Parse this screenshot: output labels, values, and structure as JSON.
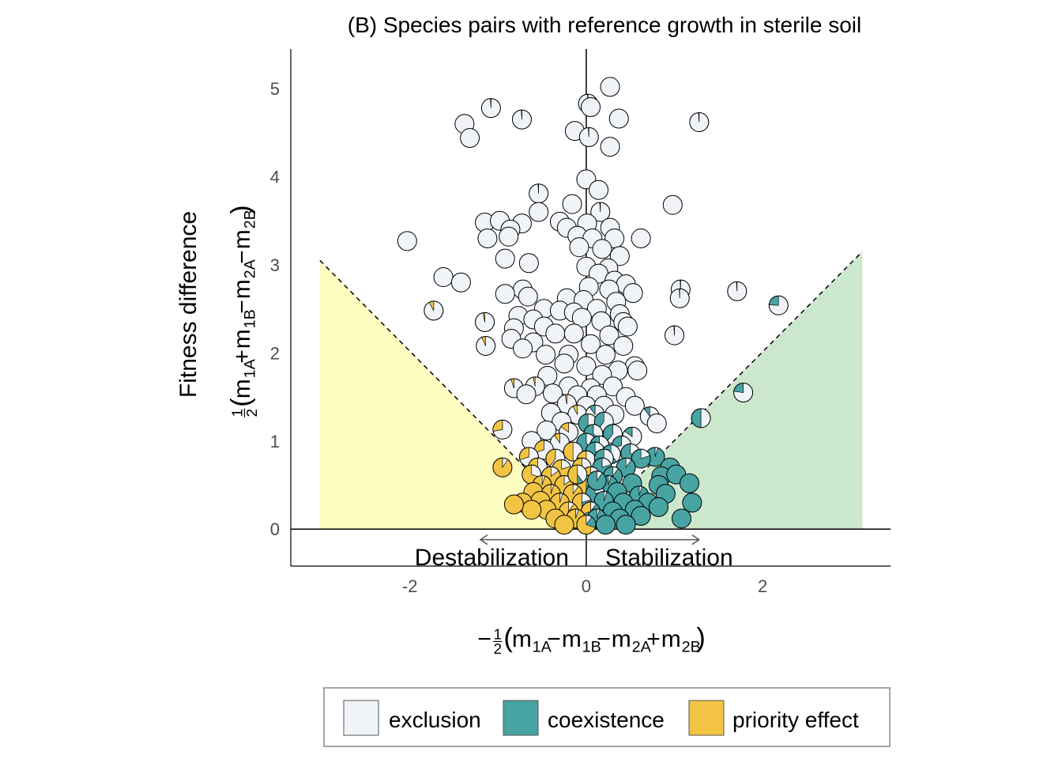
{
  "chart_data": {
    "type": "scatter",
    "title": "(B) Species pairs with reference growth in sterile soil",
    "ylabel_main": "Fitness difference",
    "ylabel_formula": {
      "frac_num": "1",
      "frac_den": "2",
      "open": "(",
      "terms": [
        {
          "base": "m",
          "sub": "1A",
          "op": ""
        },
        {
          "base": "m",
          "sub": "1B",
          "op": "+"
        },
        {
          "base": "m",
          "sub": "2A",
          "op": "−"
        },
        {
          "base": "m",
          "sub": "2B",
          "op": "−"
        }
      ],
      "close": ")"
    },
    "xlabel_formula": {
      "sign": "−",
      "frac_num": "1",
      "frac_den": "2",
      "open": "(",
      "terms": [
        {
          "base": "m",
          "sub": "1A",
          "op": ""
        },
        {
          "base": "m",
          "sub": "1B",
          "op": "−"
        },
        {
          "base": "m",
          "sub": "2A",
          "op": "−"
        },
        {
          "base": "m",
          "sub": "2B",
          "op": "+"
        }
      ],
      "close": ")"
    },
    "xlim": [
      -3.35,
      3.45
    ],
    "ylim": [
      -0.42,
      5.45
    ],
    "xticks": [
      {
        "v": -2,
        "label": "-2"
      },
      {
        "v": 0,
        "label": "0"
      },
      {
        "v": 2,
        "label": "2"
      }
    ],
    "yticks": [
      {
        "v": 0,
        "label": "0"
      },
      {
        "v": 1,
        "label": "1"
      },
      {
        "v": 2,
        "label": "2"
      },
      {
        "v": 3,
        "label": "3"
      },
      {
        "v": 4,
        "label": "4"
      },
      {
        "v": 5,
        "label": "5"
      }
    ],
    "grid": false,
    "regions": [
      {
        "name": "priority-region",
        "color": "#fdfdbf",
        "polygon": [
          [
            -3.02,
            0
          ],
          [
            -3.02,
            3.05
          ],
          [
            0,
            0
          ]
        ]
      },
      {
        "name": "coexistence-region",
        "color": "#cce8cc",
        "polygon": [
          [
            0,
            0
          ],
          [
            3.13,
            3.15
          ],
          [
            3.13,
            0
          ]
        ]
      }
    ],
    "boundary_lines": [
      {
        "from": [
          -3.02,
          3.05
        ],
        "to": [
          0,
          0
        ]
      },
      {
        "from": [
          0,
          0
        ],
        "to": [
          3.13,
          3.15
        ]
      }
    ],
    "annotations": {
      "left": "Destabilization",
      "right": "Stabilization",
      "arrow_from": -1.2,
      "arrow_to": 1.28,
      "arrow_y": -0.12
    },
    "legend": {
      "placement": "bottom",
      "items": [
        {
          "label": "exclusion",
          "color": "#f0f4f9"
        },
        {
          "label": "coexistence",
          "color": "#48a3a3"
        },
        {
          "label": "priority effect",
          "color": "#f2c444"
        }
      ]
    },
    "pie_colors": {
      "exclusion": "#f0f4f9",
      "coexistence": "#48a3a3",
      "priority": "#f2c444"
    },
    "points": [
      [
        0.27,
        5.02,
        1,
        0,
        0
      ],
      [
        0.02,
        4.83,
        0.99,
        0.01,
        0
      ],
      [
        0.05,
        4.79,
        1,
        0,
        0
      ],
      [
        -1.08,
        4.78,
        0.99,
        0.01,
        0
      ],
      [
        -1.38,
        4.6,
        1,
        0,
        0
      ],
      [
        -0.73,
        4.65,
        0.99,
        0.01,
        0
      ],
      [
        0.37,
        4.66,
        1,
        0,
        0
      ],
      [
        1.28,
        4.62,
        0.99,
        0.01,
        0
      ],
      [
        -1.32,
        4.44,
        1,
        0,
        0
      ],
      [
        -0.13,
        4.52,
        1,
        0,
        0
      ],
      [
        0.03,
        4.45,
        0.99,
        0.01,
        0
      ],
      [
        0.27,
        4.34,
        1,
        0,
        0
      ],
      [
        0.0,
        3.97,
        1,
        0,
        0
      ],
      [
        0.14,
        3.85,
        1,
        0,
        0
      ],
      [
        -0.54,
        3.81,
        0.99,
        0.01,
        0
      ],
      [
        0.98,
        3.68,
        1,
        0,
        0
      ],
      [
        -0.54,
        3.6,
        1,
        0,
        0
      ],
      [
        -0.16,
        3.69,
        1,
        0,
        0
      ],
      [
        0.16,
        3.6,
        0.99,
        0.01,
        0
      ],
      [
        -1.15,
        3.48,
        1,
        0,
        0
      ],
      [
        -0.98,
        3.5,
        1,
        0,
        0
      ],
      [
        -0.73,
        3.47,
        1,
        0,
        0
      ],
      [
        -0.86,
        3.4,
        1,
        0,
        0
      ],
      [
        -0.3,
        3.49,
        1,
        0,
        0
      ],
      [
        -0.22,
        3.42,
        1,
        0,
        0
      ],
      [
        0.01,
        3.47,
        1,
        0,
        0
      ],
      [
        0.27,
        3.42,
        1,
        0,
        0
      ],
      [
        -0.88,
        3.32,
        1,
        0,
        0
      ],
      [
        -1.12,
        3.3,
        1,
        0,
        0
      ],
      [
        -0.1,
        3.33,
        1,
        0,
        0
      ],
      [
        0.07,
        3.3,
        1,
        0,
        0
      ],
      [
        0.32,
        3.3,
        1,
        0,
        0
      ],
      [
        0.62,
        3.3,
        1,
        0,
        0
      ],
      [
        -2.03,
        3.27,
        1,
        0,
        0
      ],
      [
        -0.08,
        3.2,
        1,
        0,
        0
      ],
      [
        0.18,
        3.18,
        1,
        0,
        0
      ],
      [
        0.38,
        3.1,
        1,
        0,
        0
      ],
      [
        -0.92,
        3.07,
        1,
        0,
        0
      ],
      [
        -0.65,
        3.02,
        1,
        0,
        0
      ],
      [
        0.0,
        2.98,
        1,
        0,
        0
      ],
      [
        0.25,
        2.96,
        1,
        0,
        0
      ],
      [
        0.14,
        2.9,
        1,
        0,
        0
      ],
      [
        -1.62,
        2.86,
        1,
        0,
        0
      ],
      [
        -1.42,
        2.8,
        1,
        0,
        0
      ],
      [
        0.32,
        2.82,
        1,
        0,
        0
      ],
      [
        0.45,
        2.78,
        1,
        0,
        0
      ],
      [
        -0.72,
        2.72,
        1,
        0,
        0
      ],
      [
        0.03,
        2.75,
        1,
        0,
        0
      ],
      [
        0.26,
        2.72,
        1,
        0,
        0
      ],
      [
        1.07,
        2.72,
        0.99,
        0.01,
        0
      ],
      [
        1.71,
        2.7,
        0.99,
        0.01,
        0
      ],
      [
        -0.92,
        2.67,
        1,
        0,
        0
      ],
      [
        -0.66,
        2.64,
        1,
        0,
        0
      ],
      [
        -0.22,
        2.62,
        1,
        0,
        0
      ],
      [
        0.53,
        2.68,
        1,
        0,
        0
      ],
      [
        1.06,
        2.62,
        0.99,
        0.01,
        0
      ],
      [
        2.18,
        2.54,
        0.76,
        0.24,
        0
      ],
      [
        -0.03,
        2.6,
        1,
        0,
        0
      ],
      [
        0.34,
        2.58,
        1,
        0,
        0
      ],
      [
        -1.73,
        2.48,
        0.92,
        0,
        0.08
      ],
      [
        -0.48,
        2.5,
        1,
        0,
        0
      ],
      [
        -0.3,
        2.48,
        1,
        0,
        0
      ],
      [
        -0.14,
        2.46,
        1,
        0,
        0
      ],
      [
        0.12,
        2.5,
        1,
        0,
        0
      ],
      [
        0.38,
        2.44,
        1,
        0,
        0
      ],
      [
        -0.77,
        2.42,
        1,
        0,
        0
      ],
      [
        -0.6,
        2.38,
        1,
        0,
        0
      ],
      [
        -0.05,
        2.4,
        1,
        0,
        0
      ],
      [
        0.17,
        2.36,
        1,
        0,
        0
      ],
      [
        0.42,
        2.35,
        1,
        0,
        0
      ],
      [
        -1.15,
        2.35,
        0.97,
        0,
        0.03
      ],
      [
        -0.82,
        2.28,
        1,
        0,
        0
      ],
      [
        -0.48,
        2.3,
        1,
        0,
        0
      ],
      [
        0.47,
        2.3,
        1,
        0,
        0
      ],
      [
        -0.35,
        2.22,
        1,
        0,
        0
      ],
      [
        -0.14,
        2.22,
        1,
        0,
        0
      ],
      [
        0.26,
        2.2,
        1,
        0,
        0
      ],
      [
        1.0,
        2.2,
        0.99,
        0.01,
        0
      ],
      [
        -0.85,
        2.16,
        1,
        0,
        0
      ],
      [
        -0.6,
        2.12,
        1,
        0,
        0
      ],
      [
        0.05,
        2.1,
        1,
        0,
        0
      ],
      [
        0.42,
        2.08,
        1,
        0,
        0
      ],
      [
        -1.14,
        2.08,
        0.93,
        0,
        0.07
      ],
      [
        -0.72,
        2.05,
        1,
        0,
        0
      ],
      [
        -0.46,
        1.98,
        1,
        0,
        0
      ],
      [
        -0.2,
        1.98,
        1,
        0,
        0
      ],
      [
        0.22,
        1.98,
        1,
        0,
        0
      ],
      [
        0.55,
        1.85,
        1,
        0,
        0
      ],
      [
        -0.25,
        1.88,
        1,
        0,
        0
      ],
      [
        0.0,
        1.85,
        1,
        0,
        0
      ],
      [
        0.36,
        1.8,
        1,
        0,
        0
      ],
      [
        -0.44,
        1.74,
        1,
        0,
        0
      ],
      [
        0.18,
        1.75,
        1,
        0,
        0
      ],
      [
        0.58,
        1.8,
        1,
        0,
        0
      ],
      [
        -0.82,
        1.6,
        0.95,
        0,
        0.05
      ],
      [
        -0.58,
        1.62,
        0.97,
        0,
        0.03
      ],
      [
        -0.2,
        1.62,
        1,
        0,
        0
      ],
      [
        0.05,
        1.6,
        1,
        0,
        0
      ],
      [
        0.3,
        1.62,
        1,
        0,
        0
      ],
      [
        1.78,
        1.55,
        0.77,
        0.23,
        0
      ],
      [
        -0.68,
        1.53,
        1,
        0,
        0
      ],
      [
        -0.38,
        1.54,
        1,
        0,
        0
      ],
      [
        -0.1,
        1.52,
        1,
        0,
        0
      ],
      [
        0.12,
        1.52,
        1,
        0,
        0
      ],
      [
        0.45,
        1.5,
        1,
        0,
        0
      ],
      [
        -0.22,
        1.42,
        0.97,
        0,
        0.03
      ],
      [
        0.0,
        1.4,
        1,
        0,
        0
      ],
      [
        0.2,
        1.4,
        1,
        0,
        0
      ],
      [
        0.55,
        1.4,
        1,
        0,
        0
      ],
      [
        -0.4,
        1.32,
        1,
        0,
        0
      ],
      [
        -0.1,
        1.3,
        0.92,
        0,
        0.08
      ],
      [
        0.1,
        1.3,
        0.9,
        0.1,
        0
      ],
      [
        0.32,
        1.3,
        1,
        0,
        0
      ],
      [
        0.72,
        1.28,
        0.9,
        0.1,
        0
      ],
      [
        1.3,
        1.26,
        0.5,
        0.5,
        0
      ],
      [
        -0.28,
        1.22,
        1,
        0,
        0
      ],
      [
        0.02,
        1.2,
        0.5,
        0.5,
        0
      ],
      [
        0.2,
        1.22,
        0.6,
        0.4,
        0
      ],
      [
        0.8,
        1.2,
        1,
        0,
        0
      ],
      [
        -0.95,
        1.13,
        0.72,
        0,
        0.28
      ],
      [
        -0.45,
        1.12,
        1,
        0,
        0
      ],
      [
        -0.2,
        1.1,
        0.85,
        0,
        0.15
      ],
      [
        0.08,
        1.08,
        0.35,
        0.65,
        0
      ],
      [
        0.3,
        1.08,
        0.6,
        0.4,
        0
      ],
      [
        0.52,
        1.05,
        0.85,
        0.15,
        0
      ],
      [
        -0.62,
        1.0,
        1,
        0,
        0
      ],
      [
        -0.3,
        0.98,
        0.9,
        0,
        0.1
      ],
      [
        0.0,
        0.98,
        0.4,
        0.6,
        0
      ],
      [
        0.15,
        0.95,
        0.3,
        0.7,
        0
      ],
      [
        0.4,
        0.95,
        0.7,
        0.3,
        0
      ],
      [
        -0.48,
        0.9,
        0.7,
        0,
        0.3
      ],
      [
        -0.15,
        0.88,
        0.5,
        0,
        0.5
      ],
      [
        0.1,
        0.88,
        0.25,
        0.75,
        0
      ],
      [
        0.28,
        0.85,
        0.4,
        0.6,
        0
      ],
      [
        0.5,
        0.86,
        0.3,
        0.7,
        0
      ],
      [
        -0.65,
        0.82,
        0.7,
        0,
        0.3
      ],
      [
        -0.35,
        0.8,
        0.6,
        0,
        0.4
      ],
      [
        0.0,
        0.78,
        0.5,
        0.3,
        0.2
      ],
      [
        0.2,
        0.8,
        0.45,
        0.55,
        0
      ],
      [
        0.78,
        0.82,
        0.05,
        0.95,
        0
      ],
      [
        0.62,
        0.8,
        0.2,
        0.8,
        0
      ],
      [
        -0.95,
        0.7,
        0.1,
        0,
        0.9
      ],
      [
        -0.55,
        0.7,
        0.45,
        0,
        0.55
      ],
      [
        -0.28,
        0.68,
        0.2,
        0,
        0.8
      ],
      [
        -0.05,
        0.7,
        0.3,
        0.1,
        0.6
      ],
      [
        0.18,
        0.7,
        0.2,
        0.8,
        0
      ],
      [
        0.45,
        0.7,
        0.1,
        0.9,
        0
      ],
      [
        0.95,
        0.7,
        0,
        1,
        0
      ],
      [
        -0.62,
        0.62,
        0.3,
        0,
        0.7
      ],
      [
        -0.4,
        0.6,
        0.15,
        0,
        0.85
      ],
      [
        0.05,
        0.6,
        0.5,
        0.3,
        0.2
      ],
      [
        0.3,
        0.6,
        0.1,
        0.9,
        0
      ],
      [
        0.85,
        0.6,
        0,
        1,
        0
      ],
      [
        1.02,
        0.62,
        0,
        1,
        0
      ],
      [
        -0.5,
        0.5,
        0.05,
        0,
        0.95
      ],
      [
        -0.25,
        0.5,
        0.15,
        0,
        0.85
      ],
      [
        0.0,
        0.5,
        0.3,
        0.2,
        0.5
      ],
      [
        0.25,
        0.5,
        0.05,
        0.95,
        0
      ],
      [
        0.52,
        0.52,
        0,
        1,
        0
      ],
      [
        0.82,
        0.5,
        0,
        1,
        0
      ],
      [
        1.17,
        0.52,
        0,
        1,
        0
      ],
      [
        -0.6,
        0.42,
        0,
        0,
        1
      ],
      [
        -0.4,
        0.4,
        0.05,
        0,
        0.95
      ],
      [
        -0.15,
        0.4,
        0.1,
        0,
        0.9
      ],
      [
        0.1,
        0.4,
        0.2,
        0.8,
        0
      ],
      [
        0.35,
        0.42,
        0,
        1,
        0
      ],
      [
        0.6,
        0.38,
        0.05,
        0.95,
        0
      ],
      [
        0.9,
        0.4,
        0,
        1,
        0
      ],
      [
        -0.52,
        0.32,
        0,
        0,
        1
      ],
      [
        -0.3,
        0.3,
        0.05,
        0,
        0.95
      ],
      [
        -0.05,
        0.3,
        0.2,
        0.3,
        0.5
      ],
      [
        0.2,
        0.32,
        0.05,
        0.95,
        0
      ],
      [
        0.42,
        0.3,
        0,
        1,
        0
      ],
      [
        0.7,
        0.3,
        0,
        1,
        0
      ],
      [
        1.2,
        0.3,
        0,
        1,
        0
      ],
      [
        -0.45,
        0.22,
        0,
        0,
        1
      ],
      [
        -0.2,
        0.2,
        0.1,
        0,
        0.9
      ],
      [
        0.05,
        0.2,
        0.1,
        0.6,
        0.3
      ],
      [
        0.3,
        0.2,
        0,
        1,
        0
      ],
      [
        0.55,
        0.22,
        0,
        1,
        0
      ],
      [
        0.82,
        0.25,
        0,
        1,
        0
      ],
      [
        -0.35,
        0.12,
        0,
        0,
        1
      ],
      [
        -0.12,
        0.12,
        0.05,
        0,
        0.95
      ],
      [
        0.12,
        0.12,
        0.05,
        0.95,
        0
      ],
      [
        0.38,
        0.12,
        0,
        1,
        0
      ],
      [
        0.62,
        0.15,
        0,
        1,
        0
      ],
      [
        1.08,
        0.12,
        0,
        1,
        0
      ],
      [
        -0.25,
        0.05,
        0,
        0,
        1
      ],
      [
        0.0,
        0.05,
        0.1,
        0.2,
        0.7
      ],
      [
        0.22,
        0.05,
        0,
        1,
        0
      ],
      [
        0.45,
        0.05,
        0,
        1,
        0
      ],
      [
        -0.72,
        0.3,
        0,
        0,
        1
      ],
      [
        -0.62,
        0.22,
        0,
        0,
        1
      ],
      [
        -0.82,
        0.28,
        0,
        0,
        1
      ],
      [
        -0.1,
        0.62,
        0.4,
        0.1,
        0.5
      ],
      [
        0.12,
        0.55,
        0.1,
        0.9,
        0
      ]
    ]
  }
}
